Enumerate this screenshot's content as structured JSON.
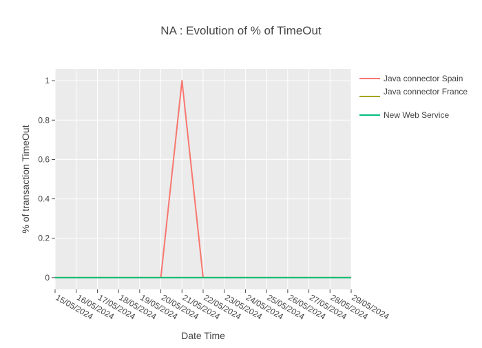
{
  "chart_data": {
    "type": "line",
    "title": "NA : Evolution of % of TimeOut",
    "xlabel": "Date Time",
    "ylabel": "% of transaction TimeOut",
    "x": [
      "15/05/2024",
      "16/05/2024",
      "17/05/2024",
      "18/05/2024",
      "19/05/2024",
      "20/05/2024",
      "21/05/2024",
      "22/05/2024",
      "23/05/2024",
      "24/05/2024",
      "25/05/2024",
      "26/05/2024",
      "27/05/2024",
      "28/05/2024",
      "29/05/2024"
    ],
    "yticks": [
      "0",
      "0.2",
      "0.4",
      "0.6",
      "0.8",
      "1"
    ],
    "ylim": [
      -0.06,
      1.06
    ],
    "grid": true,
    "legend_position": "right",
    "plot_background": "#ebebeb",
    "series": [
      {
        "name": "Java connector Spain",
        "color": "#f8766d",
        "values": [
          0,
          0,
          0,
          0,
          0,
          0,
          1,
          0,
          0,
          0,
          0,
          0,
          0,
          0,
          0
        ]
      },
      {
        "name": "Java connector France",
        "color": "#a3a500",
        "values": [
          0,
          0,
          0,
          0,
          0,
          0,
          0,
          0,
          0,
          0,
          0,
          0,
          0,
          0,
          0
        ]
      },
      {
        "name": "New Web Service",
        "color": "#00bf7d",
        "values": [
          0,
          0,
          0,
          0,
          0,
          0,
          0,
          0,
          0,
          0,
          0,
          0,
          0,
          0,
          0
        ]
      }
    ]
  }
}
